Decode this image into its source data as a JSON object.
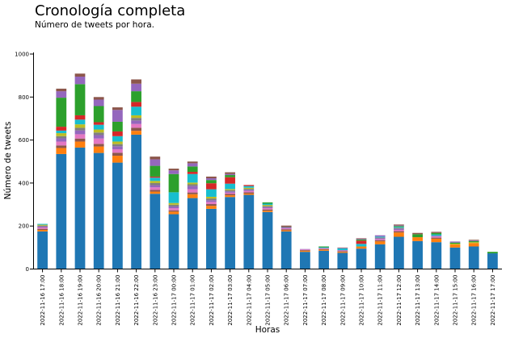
{
  "chart_data": {
    "type": "bar",
    "stacked": true,
    "title": "Cronología completa",
    "subtitle": "Número de tweets por hora.",
    "xlabel": "Horas",
    "ylabel": "Número de tweets",
    "ylim": [
      0,
      1000
    ],
    "yticks": [
      0,
      200,
      400,
      600,
      800,
      1000
    ],
    "grid": false,
    "legend": "none",
    "categories": [
      "2022-11-16 17:00",
      "2022-11-16 18:00",
      "2022-11-16 19:00",
      "2022-11-16 20:00",
      "2022-11-16 21:00",
      "2022-11-16 22:00",
      "2022-11-16 23:00",
      "2022-11-17 00:00",
      "2022-11-17 01:00",
      "2022-11-17 02:00",
      "2022-11-17 03:00",
      "2022-11-17 04:00",
      "2022-11-17 05:00",
      "2022-11-17 06:00",
      "2022-11-17 07:00",
      "2022-11-17 08:00",
      "2022-11-17 09:00",
      "2022-11-17 10:00",
      "2022-11-17 11:00",
      "2022-11-17 12:00",
      "2022-11-17 13:00",
      "2022-11-17 14:00",
      "2022-11-17 15:00",
      "2022-11-17 16:00",
      "2022-11-17 17:00"
    ],
    "colors": [
      "#1f77b4",
      "#ff7f0e",
      "#8c564b",
      "#e377c2",
      "#9467bd",
      "#7f7f7f",
      "#bcbd22",
      "#17becf",
      "#d62728",
      "#2ca02c",
      "#9467bd",
      "#8c564b"
    ],
    "stacks": [
      [
        175,
        7,
        5,
        6,
        5,
        4,
        4,
        4,
        0,
        0,
        0,
        0
      ],
      [
        535,
        28,
        12,
        18,
        15,
        10,
        14,
        12,
        18,
        135,
        30,
        12
      ],
      [
        565,
        28,
        14,
        20,
        18,
        12,
        16,
        22,
        20,
        145,
        35,
        14
      ],
      [
        540,
        30,
        12,
        25,
        16,
        12,
        14,
        22,
        12,
        75,
        30,
        12
      ],
      [
        495,
        32,
        14,
        16,
        14,
        10,
        12,
        25,
        22,
        45,
        55,
        12
      ],
      [
        625,
        18,
        14,
        18,
        16,
        12,
        12,
        40,
        22,
        50,
        35,
        20
      ],
      [
        350,
        10,
        8,
        12,
        10,
        10,
        10,
        15,
        5,
        50,
        30,
        13
      ],
      [
        255,
        12,
        6,
        10,
        8,
        8,
        8,
        50,
        0,
        85,
        17,
        8
      ],
      [
        330,
        18,
        8,
        15,
        15,
        8,
        8,
        40,
        10,
        25,
        15,
        8
      ],
      [
        280,
        14,
        8,
        10,
        8,
        8,
        8,
        35,
        28,
        15,
        8,
        8
      ],
      [
        335,
        8,
        6,
        6,
        6,
        6,
        5,
        25,
        30,
        10,
        5,
        8
      ],
      [
        345,
        6,
        6,
        6,
        5,
        5,
        5,
        8,
        5,
        0,
        0,
        0
      ],
      [
        265,
        6,
        6,
        6,
        5,
        5,
        5,
        6,
        0,
        6,
        0,
        0
      ],
      [
        175,
        5,
        5,
        4,
        4,
        4,
        0,
        0,
        0,
        0,
        0,
        5
      ],
      [
        80,
        5,
        3,
        3,
        2,
        0,
        0,
        0,
        0,
        0,
        0,
        0
      ],
      [
        85,
        5,
        3,
        3,
        2,
        0,
        0,
        3,
        0,
        4,
        0,
        0
      ],
      [
        75,
        5,
        3,
        3,
        2,
        0,
        0,
        8,
        0,
        0,
        2,
        2
      ],
      [
        95,
        10,
        0,
        0,
        0,
        0,
        0,
        12,
        15,
        5,
        3,
        3
      ],
      [
        115,
        14,
        5,
        5,
        4,
        4,
        0,
        4,
        0,
        0,
        6,
        0
      ],
      [
        150,
        20,
        6,
        6,
        5,
        5,
        0,
        4,
        0,
        4,
        3,
        4
      ],
      [
        130,
        18,
        0,
        0,
        0,
        0,
        0,
        0,
        0,
        14,
        0,
        6
      ],
      [
        125,
        16,
        5,
        5,
        4,
        0,
        0,
        6,
        0,
        7,
        0,
        5
      ],
      [
        100,
        14,
        0,
        0,
        0,
        0,
        4,
        0,
        0,
        5,
        5,
        0
      ],
      [
        105,
        16,
        0,
        0,
        0,
        0,
        4,
        0,
        0,
        5,
        3,
        3
      ],
      [
        73,
        0,
        0,
        0,
        0,
        0,
        0,
        0,
        0,
        7,
        0,
        0
      ]
    ]
  }
}
